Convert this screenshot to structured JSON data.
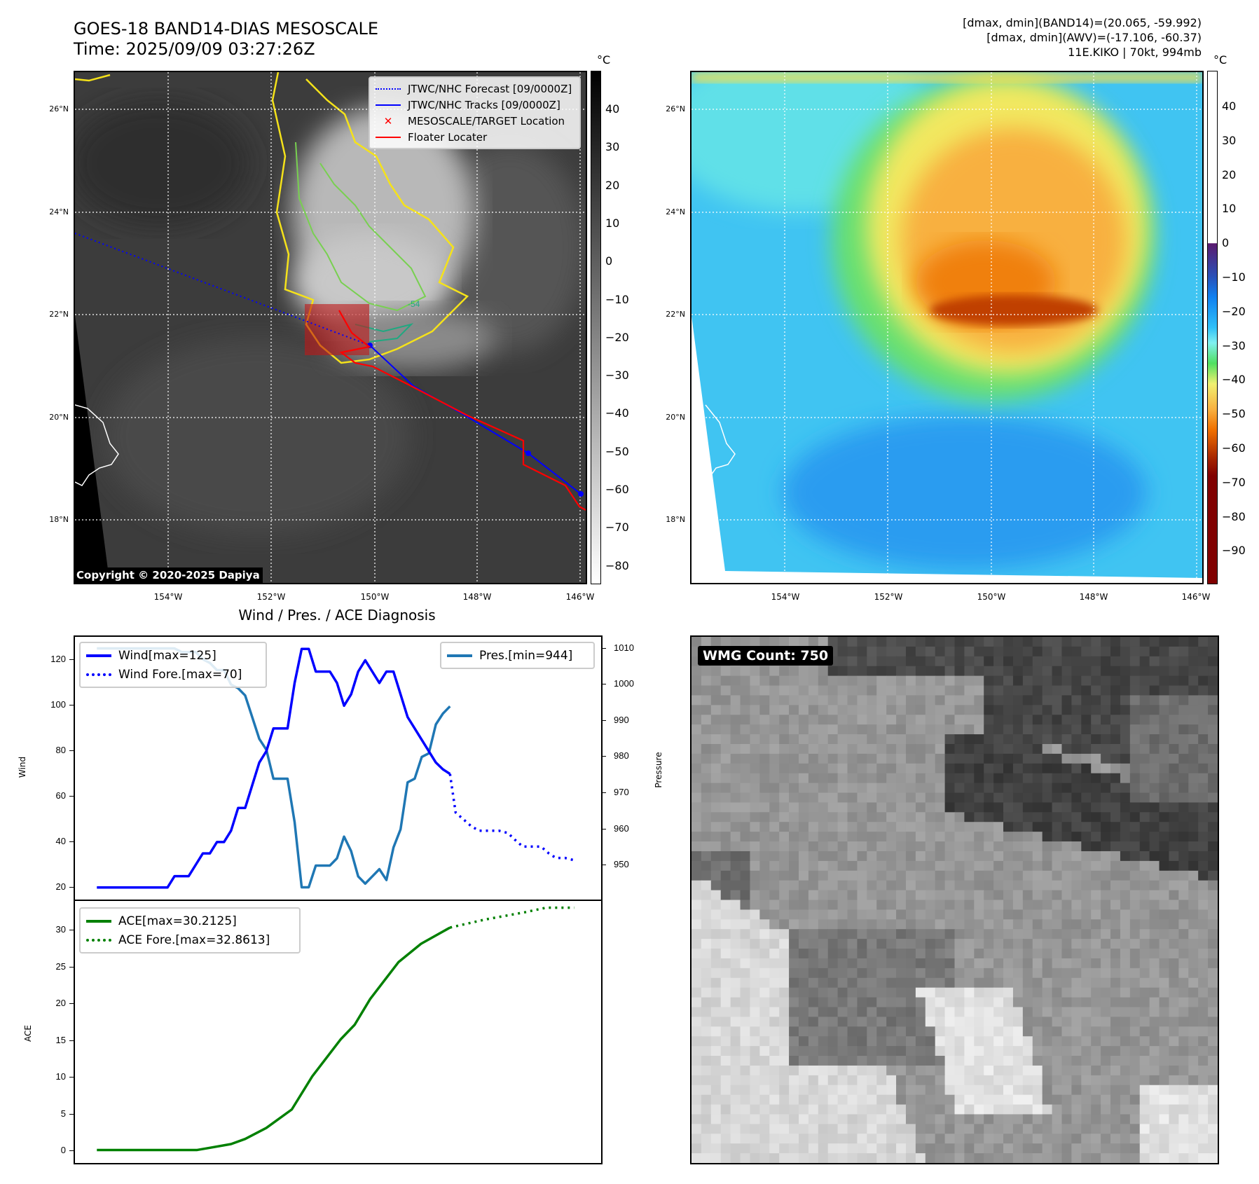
{
  "header": {
    "title": "GOES-18 BAND14-DIAS MESOSCALE",
    "time": "Time: 2025/09/09 03:27:26Z",
    "info_lines": [
      "[dmax, dmin](BAND14)=(20.065, -59.992)",
      "[dmax, dmin](AWV)=(-17.106, -60.37)",
      "11E.KIKO | 70kt, 994mb"
    ]
  },
  "maps": {
    "lat_labels": [
      "26°N",
      "24°N",
      "22°N",
      "20°N",
      "18°N"
    ],
    "lon_labels": [
      "154°W",
      "152°W",
      "150°W",
      "148°W",
      "146°W"
    ],
    "unit": "°C",
    "left_cbar_ticks": [
      "40",
      "30",
      "20",
      "10",
      "0",
      "−10",
      "−20",
      "−30",
      "−40",
      "−50",
      "−60",
      "−70",
      "−80"
    ],
    "right_cbar_ticks": [
      "40",
      "30",
      "20",
      "10",
      "0",
      "−10",
      "−20",
      "−30",
      "−40",
      "−50",
      "−60",
      "−70",
      "−80",
      "−90"
    ],
    "legend": [
      "JTWC/NHC Forecast [09/0000Z]",
      "JTWC/NHC Tracks [09/0000Z]",
      "MESOSCALE/TARGET Location",
      "Floater Locater"
    ],
    "copyright": "Copyright © 2020-2025 Dapiya",
    "contour_label": "-54"
  },
  "colors": {
    "forecast": "#0000ff",
    "track": "#0000ff",
    "target": "#ff0000",
    "floater": "#ff0000",
    "wind": "#0000ff",
    "pressure": "#1f77b4",
    "ace": "#008000"
  },
  "diagnosis": {
    "title": "Wind / Pres. / ACE Diagnosis",
    "wmg_label": "WMG Count: 750"
  },
  "chart_data": [
    {
      "type": "line",
      "title": "Wind / Pres. / ACE Diagnosis",
      "ylabel": "Wind",
      "y2label": "Pressure",
      "xlim": [
        -3.1,
        71.4
      ],
      "ylim": [
        14.7,
        130.3
      ],
      "y2lim": [
        940.6,
        1013.2
      ],
      "yticks": [
        20,
        40,
        60,
        80,
        100,
        120
      ],
      "y2ticks": [
        950,
        960,
        970,
        980,
        990,
        1000,
        1010
      ],
      "legend": [
        "Wind[max=125]",
        "Wind Fore.[max=70]"
      ],
      "legend2": [
        "Pres.[min=944]"
      ],
      "wind": [
        20,
        20,
        20,
        20,
        20,
        20,
        20,
        20,
        20,
        20,
        20,
        25,
        25,
        25,
        30,
        35,
        35,
        40,
        40,
        45,
        55,
        55,
        65,
        75,
        80,
        90,
        90,
        90,
        110,
        125,
        125,
        115,
        115,
        115,
        110,
        100,
        105,
        115,
        120,
        115,
        110,
        115,
        115,
        105,
        95,
        90,
        85,
        80,
        75,
        72,
        70
      ],
      "wind_fore_x": [
        50,
        50.8,
        51.9,
        53,
        54.1,
        55.6,
        56.9,
        58.2,
        59.2,
        60.3,
        61.5,
        62.9,
        64,
        65,
        66.3,
        67.6
      ],
      "wind_fore": [
        70,
        53,
        50,
        47,
        45,
        45,
        45,
        44,
        41,
        38,
        38,
        38,
        35,
        33,
        33,
        32
      ],
      "pressure": [
        1010,
        1010,
        1010,
        1010,
        1010,
        1010,
        1010,
        1010,
        1010,
        1010,
        1010,
        1010,
        1009,
        1009,
        1009,
        1007,
        1006,
        1004,
        1004,
        1000,
        999,
        997,
        991,
        985,
        982,
        974,
        974,
        974,
        962,
        944,
        944,
        950,
        950,
        950,
        952,
        958,
        954,
        947,
        945,
        947,
        949,
        946,
        955,
        960,
        973,
        974,
        980,
        981,
        989,
        992,
        994
      ]
    },
    {
      "type": "line",
      "ylabel": "ACE",
      "xlim": [
        -3.1,
        71.4
      ],
      "ylim": [
        -1.67,
        34.1
      ],
      "yticks": [
        0,
        5,
        10,
        15,
        20,
        25,
        30
      ],
      "legend": [
        "ACE[max=30.2125]",
        "ACE Fore.[max=32.8613]"
      ],
      "ace_x": [
        0,
        14.2,
        16,
        19,
        21,
        24,
        27.6,
        30.5,
        34.5,
        36.5,
        38.7,
        42.7,
        45.9,
        50
      ],
      "ace": [
        0,
        0,
        0.3,
        0.8,
        1.5,
        3,
        5.5,
        10,
        15,
        17,
        20.5,
        25.5,
        28,
        30.2
      ],
      "ace_fore_x": [
        50,
        55,
        60.7,
        63.6,
        67.6
      ],
      "ace_fore": [
        30.2,
        31.3,
        32.3,
        32.9,
        32.9
      ]
    }
  ]
}
